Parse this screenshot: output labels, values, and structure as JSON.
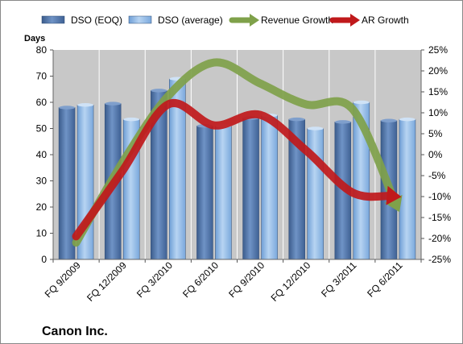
{
  "chart_data": {
    "type": "bar",
    "categories": [
      "FQ 9/2009",
      "FQ 12/2009",
      "FQ 3/2010",
      "FQ 6/2010",
      "FQ 9/2010",
      "FQ 12/2010",
      "FQ 3/2011",
      "FQ 6/2011"
    ],
    "series": [
      {
        "name": "DSO (EOQ)",
        "axis": "left",
        "kind": "bar",
        "color": "#5276a8",
        "values": [
          58,
          59.5,
          64.5,
          51,
          54,
          53.5,
          52.5,
          53
        ]
      },
      {
        "name": "DSO (average)",
        "axis": "left",
        "kind": "bar",
        "color": "#8fb8e6",
        "values": [
          59,
          53.5,
          69,
          51,
          55,
          50,
          60,
          53.5
        ]
      },
      {
        "name": "Revenue Growth",
        "axis": "right",
        "kind": "line",
        "color": "#7fa14a",
        "values": [
          -21,
          -2,
          14,
          22,
          17,
          12,
          11,
          -13
        ]
      },
      {
        "name": "AR Growth",
        "axis": "right",
        "kind": "line",
        "color": "#c0191b",
        "values": [
          -19.5,
          -4,
          12,
          7,
          9.5,
          1,
          -9,
          -10
        ]
      }
    ],
    "ylabel": "Days",
    "ylim": [
      0,
      80
    ],
    "yticks": [
      "0",
      "10",
      "20",
      "30",
      "40",
      "50",
      "60",
      "70",
      "80"
    ],
    "y2lim": [
      -25,
      25
    ],
    "y2ticks": [
      "-25%",
      "-20%",
      "-15%",
      "-10%",
      "-5%",
      "0%",
      "5%",
      "10%",
      "15%",
      "20%",
      "25%"
    ],
    "legend_position": "top",
    "grid": true,
    "plot_background": "#c8c8c8",
    "annotation": "Canon Inc."
  }
}
